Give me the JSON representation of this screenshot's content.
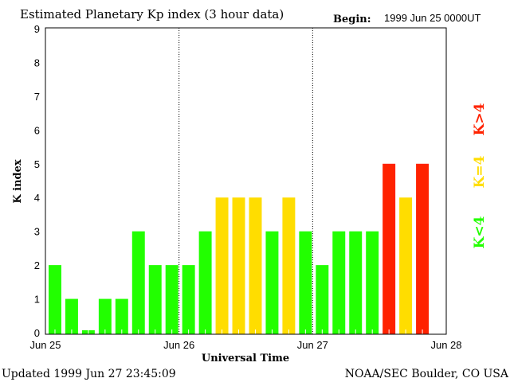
{
  "chart_data": {
    "type": "bar",
    "title": "Estimated Planetary Kp index (3 hour data)",
    "begin_label": "Begin:",
    "begin_value": "1999 Jun 25 0000UT",
    "xlabel": "Universal Time",
    "ylabel": "K index",
    "ylim": [
      0,
      9
    ],
    "yticks": [
      "0",
      "1",
      "2",
      "3",
      "4",
      "5",
      "6",
      "7",
      "8",
      "9"
    ],
    "xticks": [
      "Jun 25",
      "Jun 26",
      "Jun 27",
      "Jun 28"
    ],
    "slots_per_day": 8,
    "values": [
      2,
      1,
      0,
      1,
      1,
      3,
      2,
      2,
      2,
      3,
      4,
      4,
      4,
      3,
      4,
      3,
      2,
      3,
      3,
      3,
      5,
      4,
      5
    ],
    "colors": {
      "low": "#22ff00",
      "mid": "#ffdd00",
      "high": "#ff2200"
    },
    "legend": {
      "low": "K<4",
      "mid": "K=4",
      "high": "K>4"
    },
    "legend_position": "right"
  },
  "footer": {
    "updated": "Updated 1999 Jun 27 23:45:09",
    "source": "NOAA/SEC Boulder, CO USA"
  }
}
